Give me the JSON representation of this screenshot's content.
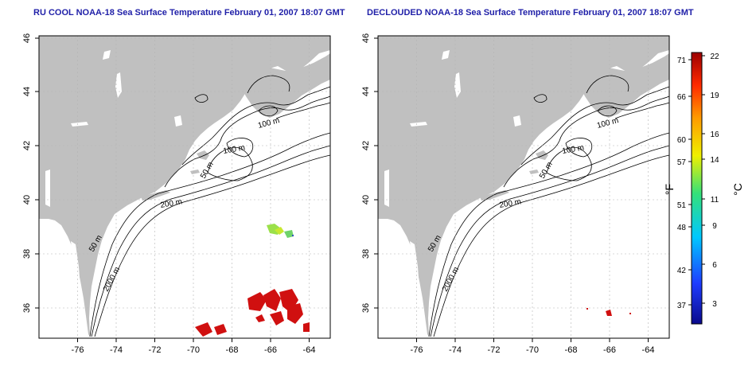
{
  "panels": [
    {
      "title": "RU COOL NOAA-18 Sea Surface Temperature February 01, 2007 18:07 GMT"
    },
    {
      "title": "DECLOUDED NOAA-18 Sea Surface Temperature February 01, 2007 18:07 GMT"
    }
  ],
  "axes": {
    "lon_ticks": [
      "-76",
      "-74",
      "-72",
      "-70",
      "-68",
      "-66",
      "-64"
    ],
    "lat_ticks": [
      "46",
      "44",
      "42",
      "40",
      "38",
      "36"
    ]
  },
  "contours": {
    "label_100_north": "100 m",
    "label_100_mid": "100 m",
    "label_50_gb": "50 m",
    "label_200": "200 m",
    "label_50_shelf": "50 m",
    "label_2000": "2000 m"
  },
  "colorbar": {
    "unit_f": "°F",
    "unit_c": "°C",
    "fahrenheit_ticks": [
      "71",
      "66",
      "60",
      "57",
      "51",
      "48",
      "42",
      "37"
    ],
    "celsius_ticks": [
      "22",
      "19",
      "16",
      "14",
      "11",
      "9",
      "6",
      "3"
    ],
    "colors": [
      "#0a0a8c",
      "#1e3cff",
      "#00c8ff",
      "#34e07a",
      "#f0f000",
      "#ff9a00",
      "#ff2a00",
      "#9c0000"
    ]
  },
  "colors": {
    "land": "#c0c0c0",
    "ocean": "#ffffff",
    "sst_warm": "#d01010",
    "sst_cool": "#9be04a"
  }
}
